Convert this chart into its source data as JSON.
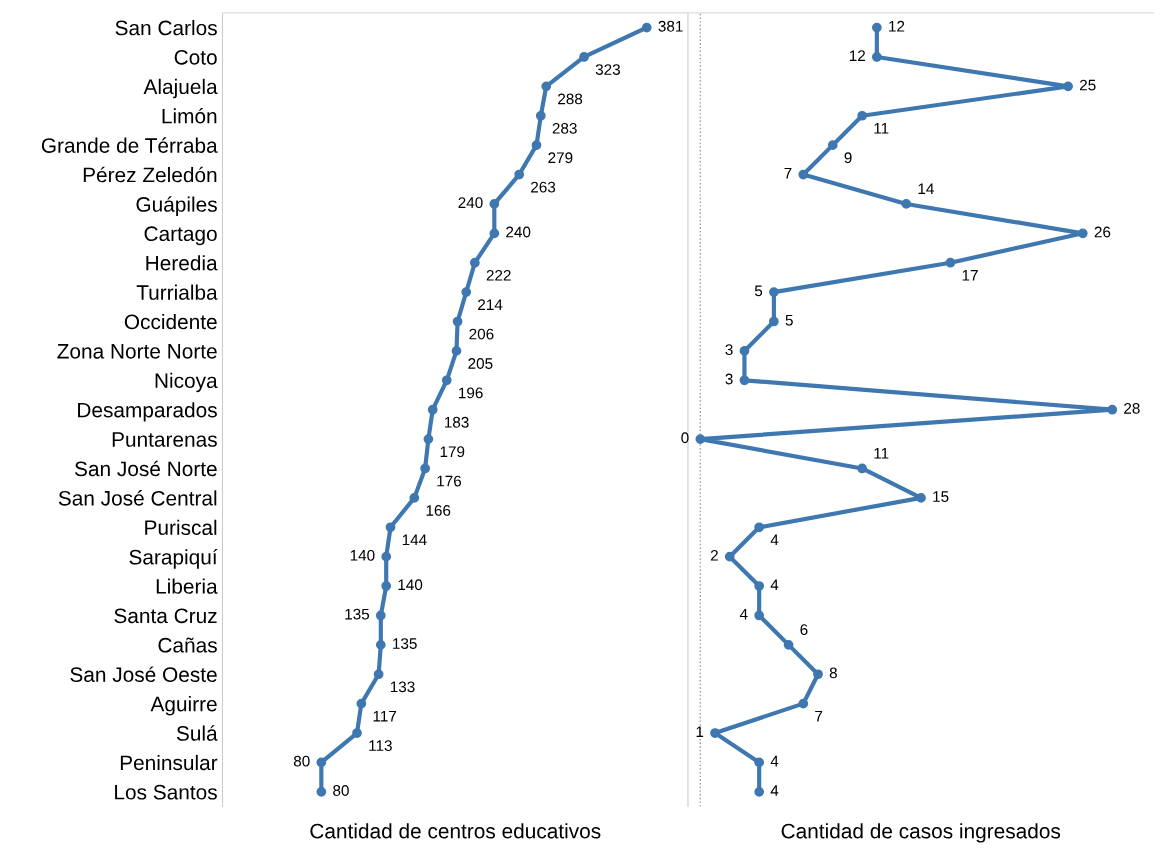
{
  "chart_data": [
    {
      "type": "line",
      "orientation": "horizontal",
      "xlabel": "Cantidad de centros educativos",
      "categories": [
        "San Carlos",
        "Coto",
        "Alajuela",
        "Limón",
        "Grande de Térraba",
        "Pérez Zeledón",
        "Guápiles",
        "Cartago",
        "Heredia",
        "Turrialba",
        "Occidente",
        "Zona Norte Norte",
        "Nicoya",
        "Desamparados",
        "Puntarenas",
        "San José Norte",
        "San José Central",
        "Puriscal",
        "Sarapiquí",
        "Liberia",
        "Santa Cruz",
        "Cañas",
        "San José Oeste",
        "Aguirre",
        "Sulá",
        "Peninsular",
        "Los Santos"
      ],
      "series": [
        {
          "color": "#3f77b0",
          "values": [
            381,
            323,
            288,
            283,
            279,
            263,
            240,
            240,
            222,
            214,
            206,
            205,
            196,
            183,
            179,
            176,
            166,
            144,
            140,
            140,
            135,
            135,
            133,
            117,
            113,
            80,
            80
          ]
        }
      ],
      "data_labels": true,
      "marker": "circle",
      "tick_labels": "y",
      "grid": false
    },
    {
      "type": "line",
      "orientation": "horizontal",
      "xlabel": "Cantidad de casos ingresados",
      "categories": [
        null,
        null,
        null,
        null,
        null,
        null,
        null,
        null,
        null,
        null,
        null,
        null,
        null,
        null,
        null,
        null,
        null,
        null,
        null,
        null,
        null,
        null,
        null,
        null,
        null,
        null,
        null
      ],
      "series": [
        {
          "color": "#3f77b0",
          "values": [
            12,
            12,
            25,
            11,
            9,
            7,
            14,
            26,
            17,
            5,
            5,
            3,
            3,
            28,
            0,
            11,
            15,
            4,
            2,
            4,
            4,
            6,
            8,
            7,
            1,
            4,
            4
          ]
        }
      ],
      "ref_lines": [
        {
          "axis": "x",
          "value": 0,
          "color": "#999999",
          "line_style": "dotted"
        }
      ],
      "data_labels": true,
      "marker": "circle",
      "tick_labels": false,
      "grid": false
    }
  ]
}
